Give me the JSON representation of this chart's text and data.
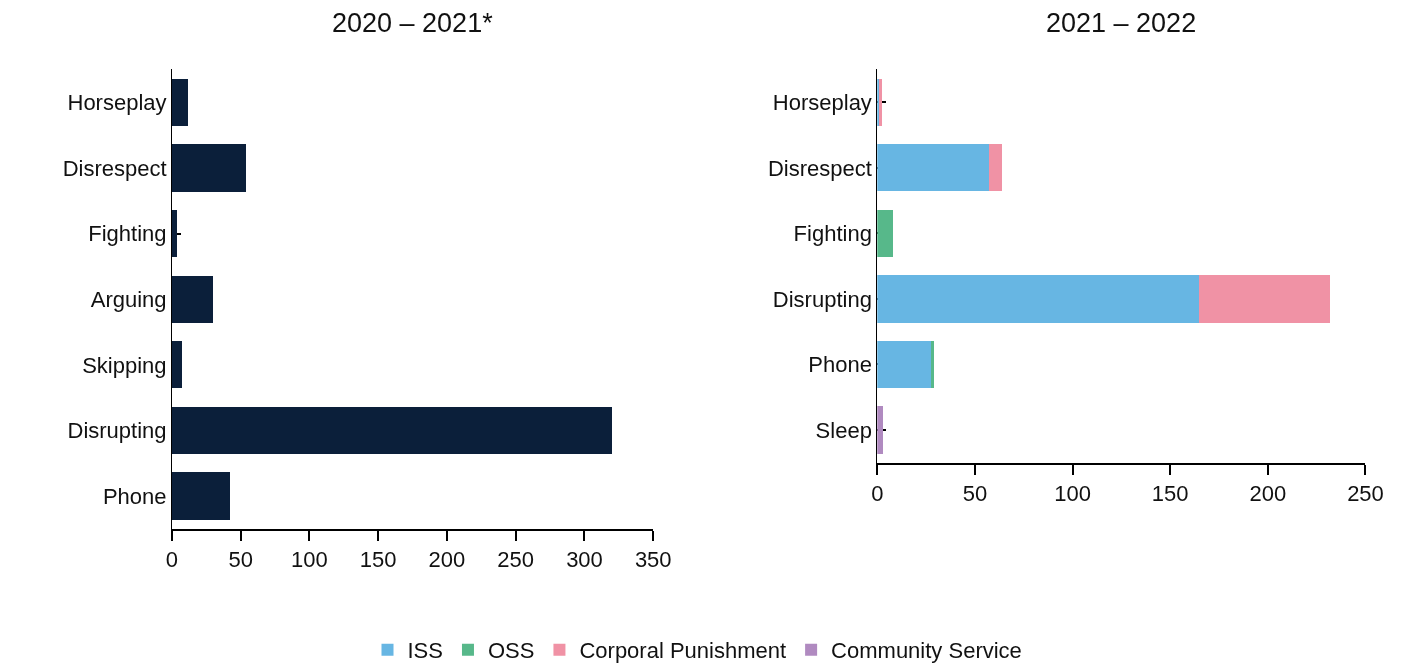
{
  "chart_data": [
    {
      "type": "bar",
      "orientation": "horizontal",
      "title": "2020 – 2021*",
      "categories": [
        "Horseplay",
        "Disrespect",
        "Fighting",
        "Arguing",
        "Skipping",
        "Disrupting",
        "Phone"
      ],
      "values": [
        12,
        54,
        4,
        30,
        7,
        320,
        42
      ],
      "color": "#0b1f3a",
      "xlim": [
        0,
        350
      ],
      "xticks": [
        0,
        50,
        100,
        150,
        200,
        250,
        300,
        350
      ]
    },
    {
      "type": "bar",
      "orientation": "horizontal",
      "stacked": true,
      "title": "2021 – 2022",
      "categories": [
        "Horseplay",
        "Disrespect",
        "Fighting",
        "Disrupting",
        "Phone",
        "Sleep"
      ],
      "series": [
        {
          "name": "ISS",
          "color": "#67b6e3",
          "values": [
            1.5,
            57,
            0,
            165,
            28,
            0
          ]
        },
        {
          "name": "OSS",
          "color": "#57b88a",
          "values": [
            0,
            0,
            8,
            0,
            1,
            0
          ]
        },
        {
          "name": "Corporal Punishment",
          "color": "#f092a5",
          "values": [
            1,
            7,
            0,
            67,
            0,
            0
          ]
        },
        {
          "name": "Community Service",
          "color": "#b08ac0",
          "values": [
            0,
            0,
            0,
            0,
            0,
            3
          ]
        }
      ],
      "xlim": [
        0,
        250
      ],
      "xticks": [
        0,
        50,
        100,
        150,
        200,
        250
      ],
      "legend": "bottom"
    }
  ]
}
